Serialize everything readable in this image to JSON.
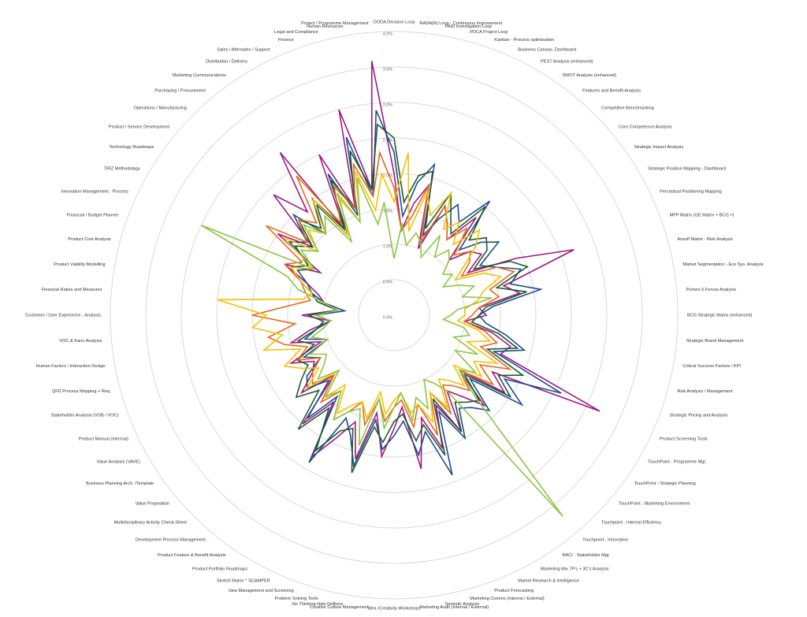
{
  "chart_data": {
    "type": "radar",
    "categories": [
      "OODA Decision Loop",
      "RADA(R) Loop - Continuous Improvement",
      "PAID Investigation Loop",
      "PDCA Project Loop",
      "Kanban - Process optimisation",
      "Business Canvas- Dashboard",
      "PEST Analysis (enhanced)",
      "SWOT Analysis (enhanced)",
      "Features and Benefit Analysis",
      "Competitive Benchmarking",
      "Core Competence Analysis",
      "Strategic Impact Analysis",
      "Strategic Position Mapping - Dashboard",
      "Perceptual Positioning Mapping",
      "MFP Matrix (GE Matrix + BCG +)",
      "Ansoff Matrix - Risk Analysis",
      "Market Segmentation - Eco Sys. Analysis",
      "Porters 5 Forces Analysis",
      "BCG Strategic Matrix (enhanced)",
      "Strategic Brand Management",
      "Critical Success Factors / KPI",
      "Risk Analysis / Management",
      "Strategic Pricing and Analysis",
      "Product Screening Tools",
      "TouchPoint - Programme Mgt.",
      "TouchPoint - Strategic Planning",
      "TouchPoint - Marketing Environment",
      "Touchpoint - Internal Efficiency",
      "Touchpoint - Innovation",
      "RACI - Stakeholder Mgt.",
      "Marketing Mix 7P's + 3C's Analysis",
      "Market Research & Intelligence",
      "Product Forecasting",
      "Marketing Comms (Internal / External)",
      "Semiotic Analysis",
      "Marketing Audit (Internal / External)",
      "Idea /Creativity Workshops",
      "Creative Culture Management",
      "Six Thinking Hats DeBono",
      "Problem Solving Tools",
      "Idea Management and Screening",
      "Stretch Matrix ^ SCAMPER",
      "Product Portfolio Roadmaps",
      "Product Feature & Benefit Analysis",
      "Development Process Management",
      "Multidisciplinary Activity Check-Sheet",
      "Value Proposition",
      "Business Planning Arch. /Template",
      "Value Analysis (VAVE)",
      "Product Manual (Internal)",
      "Stakeholder Analysis (VOB / VOC)",
      "QFD Process Mapping + Req.",
      "Human Factors / Interaction Design",
      "VOC & Kano Analysis",
      "Customer / User Experience - Analysis",
      "Financial Ratios and Measures",
      "Product Viability Modelling",
      "Product Cost Analysis",
      "Financial / Budget Planner",
      "Innovation Management - Process",
      "TRIZ Methodology",
      "Technology Roadmaps",
      "Product / Service Development",
      "Operations / Manufacturing",
      "Purchasing / Procurement",
      "Marketing Communications",
      "Distribution / Delivery",
      "Sales / Aftersales / Support",
      "Finance",
      "Legal and Compliance",
      "Human Resources",
      "Project / Programme Management"
    ],
    "series": [
      {
        "color": "#a0197f",
        "values": [
          2.0,
          1.2,
          1.6,
          1.9,
          1.0,
          1.7,
          1.5,
          1.3,
          1.8,
          1.1,
          1.4,
          1.5,
          1.2,
          1.9,
          2.7,
          1.6,
          1.8,
          1.2,
          1.3,
          1.0,
          1.4,
          1.7,
          1.6,
          3.2,
          1.6,
          1.9,
          1.2,
          1.8,
          1.5,
          1.3,
          1.9,
          1.4,
          2.0,
          1.5,
          2.2,
          1.3,
          1.6,
          2.0,
          1.4,
          2.1,
          1.6,
          1.9,
          2.3,
          1.5,
          2.0,
          1.2,
          1.7,
          1.4,
          1.3,
          1.6,
          1.1,
          1.5,
          1.2,
          0.9,
          1.3,
          0.8,
          1.0,
          1.1,
          1.3,
          1.7,
          1.2,
          2.0,
          1.5,
          2.4,
          1.9,
          2.8,
          1.4,
          2.5,
          1.6,
          3.0,
          1.8,
          3.6
        ]
      },
      {
        "color": "#1f4e8c",
        "values": [
          2.3,
          1.4,
          1.9,
          2.2,
          1.2,
          1.5,
          1.8,
          1.6,
          2.1,
          1.3,
          1.6,
          1.8,
          1.4,
          1.6,
          1.9,
          1.7,
          2.1,
          1.4,
          1.2,
          1.3,
          1.6,
          1.9,
          1.5,
          2.6,
          1.8,
          2.2,
          1.4,
          1.9,
          1.7,
          1.6,
          2.0,
          1.5,
          2.4,
          1.7,
          2.0,
          1.5,
          1.7,
          1.9,
          1.5,
          2.2,
          1.8,
          1.6,
          2.4,
          1.4,
          1.9,
          1.3,
          1.6,
          1.5,
          1.2,
          1.4,
          1.0,
          1.3,
          1.1,
          0.9,
          1.1,
          0.7,
          1.0,
          1.2,
          1.3,
          1.5,
          1.3,
          1.8,
          1.6,
          2.0,
          1.5,
          1.9,
          1.3,
          2.2,
          1.5,
          2.6,
          1.7,
          2.9
        ]
      },
      {
        "color": "#1e5a2e",
        "values": [
          2.5,
          1.6,
          2.0,
          2.1,
          1.3,
          1.9,
          1.6,
          1.4,
          2.0,
          1.5,
          1.7,
          1.6,
          1.3,
          1.8,
          2.0,
          1.5,
          1.9,
          1.3,
          1.2,
          1.1,
          1.5,
          1.8,
          1.4,
          2.0,
          1.7,
          2.0,
          1.3,
          1.7,
          1.6,
          1.5,
          1.9,
          1.3,
          2.1,
          1.6,
          1.8,
          1.4,
          1.5,
          1.8,
          1.6,
          2.3,
          1.7,
          1.8,
          2.2,
          1.6,
          2.1,
          1.5,
          1.8,
          1.6,
          1.4,
          1.5,
          1.2,
          1.4,
          1.1,
          1.0,
          1.2,
          0.8,
          1.1,
          1.2,
          1.4,
          1.6,
          1.4,
          1.7,
          1.5,
          1.9,
          1.6,
          2.0,
          1.4,
          2.1,
          1.6,
          2.4,
          1.8,
          2.7
        ]
      },
      {
        "color": "#e8671b",
        "values": [
          1.8,
          1.2,
          1.4,
          1.9,
          1.1,
          1.7,
          1.5,
          1.3,
          1.6,
          1.2,
          1.4,
          1.3,
          1.1,
          1.6,
          1.8,
          1.4,
          1.5,
          1.2,
          1.1,
          1.0,
          1.3,
          1.5,
          1.3,
          1.8,
          1.4,
          1.7,
          1.2,
          1.5,
          1.3,
          1.2,
          1.6,
          1.2,
          1.8,
          1.3,
          1.6,
          1.2,
          1.3,
          1.5,
          1.2,
          1.6,
          1.3,
          1.5,
          1.7,
          1.3,
          1.6,
          1.2,
          1.5,
          1.4,
          1.2,
          1.5,
          1.3,
          1.6,
          1.8,
          1.4,
          2.0,
          1.5,
          1.2,
          1.3,
          1.4,
          1.7,
          1.5,
          2.2,
          1.6,
          1.9,
          1.7,
          2.4,
          1.5,
          2.0,
          1.6,
          2.2,
          1.7,
          2.3
        ]
      },
      {
        "color": "#f5c100",
        "values": [
          1.6,
          2.3,
          1.2,
          1.8,
          1.5,
          1.9,
          1.4,
          1.6,
          1.3,
          1.7,
          1.5,
          1.2,
          1.0,
          1.4,
          1.6,
          1.3,
          1.2,
          1.0,
          1.0,
          0.9,
          1.2,
          1.4,
          1.1,
          1.6,
          1.3,
          1.5,
          1.1,
          1.4,
          1.2,
          1.1,
          1.5,
          1.2,
          1.6,
          1.3,
          1.4,
          1.1,
          1.2,
          1.4,
          1.1,
          1.5,
          1.3,
          1.4,
          1.6,
          1.2,
          1.5,
          1.1,
          1.6,
          1.3,
          1.5,
          1.7,
          1.4,
          1.9,
          1.6,
          2.0,
          1.8,
          2.5,
          1.3,
          1.2,
          1.4,
          1.6,
          1.3,
          1.9,
          1.4,
          1.7,
          1.5,
          2.0,
          1.3,
          1.8,
          1.4,
          2.1,
          1.5,
          2.0
        ]
      },
      {
        "color": "#8dc63f",
        "values": [
          0.8,
          1.3,
          1.0,
          1.2,
          1.1,
          0.9,
          1.3,
          1.0,
          1.2,
          1.1,
          0.9,
          1.0,
          0.8,
          1.0,
          1.2,
          1.0,
          1.4,
          0.9,
          0.8,
          0.7,
          1.0,
          1.1,
          0.9,
          1.3,
          1.0,
          1.4,
          1.2,
          1.6,
          3.7,
          1.3,
          1.1,
          1.0,
          1.4,
          1.2,
          1.5,
          1.1,
          1.3,
          1.6,
          1.2,
          1.9,
          1.4,
          1.5,
          1.7,
          1.3,
          1.5,
          1.1,
          1.4,
          1.2,
          1.1,
          1.3,
          1.0,
          1.2,
          1.0,
          0.9,
          1.1,
          0.8,
          1.0,
          1.4,
          1.6,
          3.0,
          1.3,
          1.6,
          1.4,
          1.8,
          1.5,
          1.7,
          1.2,
          1.9,
          1.4,
          2.0,
          1.3,
          1.6
        ]
      }
    ],
    "ylim": [
      0,
      4
    ],
    "yticks": [
      {
        "value": 0,
        "label": "0.0%"
      },
      {
        "value": 0.5,
        "label": "0.5%"
      },
      {
        "value": 1,
        "label": "1.0%"
      },
      {
        "value": 1.5,
        "label": "1.5%"
      },
      {
        "value": 2,
        "label": "2.0%"
      },
      {
        "value": 2.5,
        "label": "2.5%"
      },
      {
        "value": 3,
        "label": "3.0%"
      },
      {
        "value": 3.5,
        "label": "3.5%"
      },
      {
        "value": 4,
        "label": "4.0%"
      }
    ],
    "grid": true
  }
}
